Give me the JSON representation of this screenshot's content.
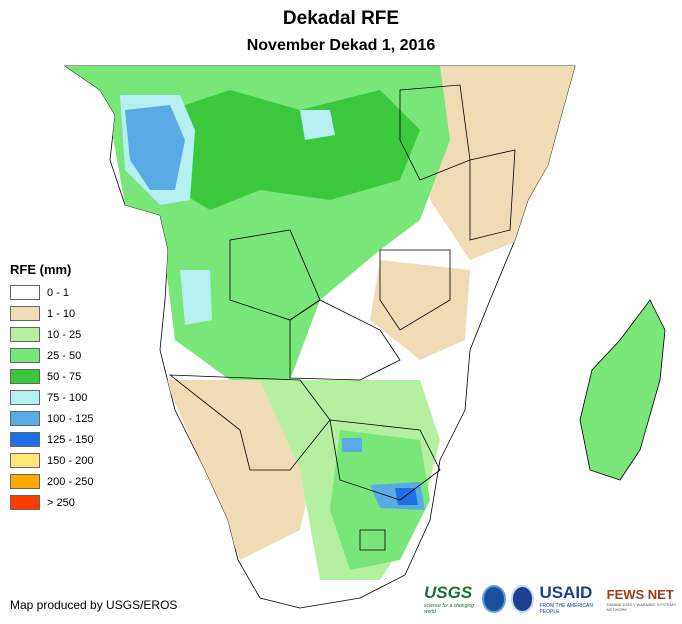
{
  "title": "Dekadal RFE",
  "subtitle": "November Dekad 1, 2016",
  "legend": {
    "title": "RFE (mm)",
    "items": [
      {
        "label": "0 - 1",
        "color": "#ffffff"
      },
      {
        "label": "1 - 10",
        "color": "#f0dcb4"
      },
      {
        "label": "10 - 25",
        "color": "#b4f0a0"
      },
      {
        "label": "25 - 50",
        "color": "#78e678"
      },
      {
        "label": "50 - 75",
        "color": "#3cc83c"
      },
      {
        "label": "75 - 100",
        "color": "#b4f0f0"
      },
      {
        "label": "100 - 125",
        "color": "#5aaae6"
      },
      {
        "label": "125 - 150",
        "color": "#1e6ee6"
      },
      {
        "label": "150 - 200",
        "color": "#ffe678"
      },
      {
        "label": "200 - 250",
        "color": "#ffaa00"
      },
      {
        "label": "> 250",
        "color": "#ff3c00"
      }
    ]
  },
  "credit": "Map produced by USGS/EROS",
  "logos": {
    "usgs": "USGS",
    "usgs_tagline": "science for a changing world",
    "usaid": "USAID",
    "usaid_tagline": "FROM THE AMERICAN PEOPLE",
    "fews": "FEWS NET",
    "fews_tagline": "FAMINE EARLY WARNING SYSTEMS NETWORK"
  }
}
